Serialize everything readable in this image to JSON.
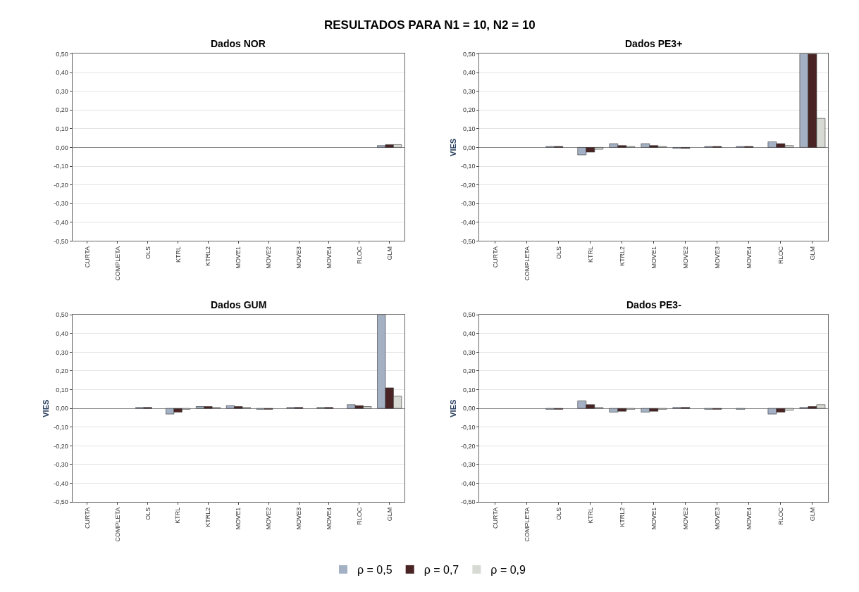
{
  "chart_data": [
    {
      "type": "bar",
      "title": "Dados NOR",
      "categories": [
        "CURTA",
        "COMPLETA",
        "OLS",
        "KTRL",
        "KTRL2",
        "MOVE1",
        "MOVE2",
        "MOVE3",
        "MOVE4",
        "RLOC",
        "GLM"
      ],
      "series": [
        {
          "name": "ρ = 0,5",
          "color": "#a4b0c4",
          "values": [
            0,
            0,
            0,
            0,
            0,
            0,
            0,
            0,
            0,
            0,
            0.01
          ]
        },
        {
          "name": "ρ = 0,7",
          "color": "#4a2424",
          "values": [
            0,
            0,
            0,
            0,
            0,
            0,
            0,
            0,
            0,
            0,
            0.015
          ]
        },
        {
          "name": "ρ = 0,9",
          "color": "#d6dad2",
          "values": [
            0,
            0,
            0,
            0,
            0,
            0,
            0,
            0,
            0,
            0,
            0.015
          ]
        }
      ],
      "ylim": [
        -0.5,
        0.5
      ],
      "yticks": [
        {
          "value": -0.5,
          "label": "-0,50"
        },
        {
          "value": -0.4,
          "label": "-0,40"
        },
        {
          "value": -0.3,
          "label": "-0,30"
        },
        {
          "value": -0.2,
          "label": "-0,20"
        },
        {
          "value": -0.1,
          "label": "-0,10"
        },
        {
          "value": 0,
          "label": "0,00"
        },
        {
          "value": 0.1,
          "label": "0,10"
        },
        {
          "value": 0.2,
          "label": "0,20"
        },
        {
          "value": 0.3,
          "label": "0,30"
        },
        {
          "value": 0.4,
          "label": "0,40"
        },
        {
          "value": 0.5,
          "label": "0,50"
        }
      ],
      "grid": "y",
      "legend": "bottom"
    },
    {
      "type": "bar",
      "title": "Dados PE3+",
      "ylabel": "VIES",
      "categories": [
        "CURTA",
        "COMPLETA",
        "OLS",
        "KTRL",
        "KTRL2",
        "MOVE1",
        "MOVE2",
        "MOVE3",
        "MOVE4",
        "RLOC",
        "GLM"
      ],
      "series": [
        {
          "name": "ρ = 0,5",
          "color": "#a4b0c4",
          "values": [
            0,
            0,
            0.005,
            -0.04,
            0.02,
            0.02,
            -0.005,
            0.005,
            0.005,
            0.03,
            0.5
          ]
        },
        {
          "name": "ρ = 0,7",
          "color": "#4a2424",
          "values": [
            0,
            0,
            0.005,
            -0.025,
            0.01,
            0.01,
            -0.005,
            0.005,
            0.005,
            0.02,
            0.5
          ]
        },
        {
          "name": "ρ = 0,9",
          "color": "#d6dad2",
          "values": [
            0,
            0,
            0,
            -0.01,
            0.005,
            0.005,
            0,
            0,
            0,
            0.01,
            0.155
          ]
        }
      ],
      "ylim": [
        -0.5,
        0.5
      ],
      "yticks": [
        {
          "value": -0.5,
          "label": "-0,50"
        },
        {
          "value": -0.4,
          "label": "-0,40"
        },
        {
          "value": -0.3,
          "label": "-0,30"
        },
        {
          "value": -0.2,
          "label": "-0,20"
        },
        {
          "value": -0.1,
          "label": "-0,10"
        },
        {
          "value": 0,
          "label": "0,00"
        },
        {
          "value": 0.1,
          "label": "0,10"
        },
        {
          "value": 0.2,
          "label": "0,20"
        },
        {
          "value": 0.3,
          "label": "0,30"
        },
        {
          "value": 0.4,
          "label": "0,40"
        },
        {
          "value": 0.5,
          "label": "0,50"
        }
      ],
      "grid": "y",
      "legend": "bottom"
    },
    {
      "type": "bar",
      "title": "Dados GUM",
      "ylabel": "VIES",
      "categories": [
        "CURTA",
        "COMPLETA",
        "OLS",
        "KTRL",
        "KTRL2",
        "MOVE1",
        "MOVE2",
        "MOVE3",
        "MOVE4",
        "RLOC",
        "GLM"
      ],
      "series": [
        {
          "name": "ρ = 0,5",
          "color": "#a4b0c4",
          "values": [
            0,
            0,
            0.005,
            -0.03,
            0.01,
            0.015,
            -0.005,
            0.005,
            0.005,
            0.02,
            0.5
          ]
        },
        {
          "name": "ρ = 0,7",
          "color": "#4a2424",
          "values": [
            0,
            0,
            0.005,
            -0.02,
            0.01,
            0.01,
            -0.005,
            0.005,
            0.005,
            0.015,
            0.11
          ]
        },
        {
          "name": "ρ = 0,9",
          "color": "#d6dad2",
          "values": [
            0,
            0,
            0,
            -0.005,
            0.005,
            0.005,
            0,
            0,
            0,
            0.01,
            0.065
          ]
        }
      ],
      "ylim": [
        -0.5,
        0.5
      ],
      "yticks": [
        {
          "value": -0.5,
          "label": "-0,50"
        },
        {
          "value": -0.4,
          "label": "-0,40"
        },
        {
          "value": -0.3,
          "label": "-0,30"
        },
        {
          "value": -0.2,
          "label": "-0,20"
        },
        {
          "value": -0.1,
          "label": "-0,10"
        },
        {
          "value": 0,
          "label": "0,00"
        },
        {
          "value": 0.1,
          "label": "0,10"
        },
        {
          "value": 0.2,
          "label": "0,20"
        },
        {
          "value": 0.3,
          "label": "0,30"
        },
        {
          "value": 0.4,
          "label": "0,40"
        },
        {
          "value": 0.5,
          "label": "0,50"
        }
      ],
      "grid": "y",
      "legend": "bottom"
    },
    {
      "type": "bar",
      "title": "Dados PE3-",
      "ylabel": "VIES",
      "categories": [
        "CURTA",
        "COMPLETA",
        "OLS",
        "KTRL",
        "KTRL2",
        "MOVE1",
        "MOVE2",
        "MOVE3",
        "MOVE4",
        "RLOC",
        "GLM"
      ],
      "series": [
        {
          "name": "ρ = 0,5",
          "color": "#a4b0c4",
          "values": [
            0,
            0,
            -0.005,
            0.04,
            -0.02,
            -0.02,
            0.005,
            -0.005,
            -0.005,
            -0.03,
            0.005
          ]
        },
        {
          "name": "ρ = 0,7",
          "color": "#4a2424",
          "values": [
            0,
            0,
            -0.005,
            0.02,
            -0.015,
            -0.015,
            0.005,
            -0.005,
            0,
            -0.02,
            0.01
          ]
        },
        {
          "name": "ρ = 0,9",
          "color": "#d6dad2",
          "values": [
            0,
            0,
            0,
            0.005,
            -0.005,
            -0.005,
            0,
            0,
            0,
            -0.01,
            0.02
          ]
        }
      ],
      "ylim": [
        -0.5,
        0.5
      ],
      "yticks": [
        {
          "value": -0.5,
          "label": "-0,50"
        },
        {
          "value": -0.4,
          "label": "-0,40"
        },
        {
          "value": -0.3,
          "label": "-0,30"
        },
        {
          "value": -0.2,
          "label": "-0,20"
        },
        {
          "value": -0.1,
          "label": "-0,10"
        },
        {
          "value": 0,
          "label": "0,00"
        },
        {
          "value": 0.1,
          "label": "0,10"
        },
        {
          "value": 0.2,
          "label": "0,20"
        },
        {
          "value": 0.3,
          "label": "0,30"
        },
        {
          "value": 0.4,
          "label": "0,40"
        },
        {
          "value": 0.5,
          "label": "0,50"
        }
      ],
      "grid": "y",
      "legend": "bottom"
    },
    {
      "type": "other",
      "title": "RESULTADOS PARA N1 = 10, N2 = 10"
    }
  ]
}
